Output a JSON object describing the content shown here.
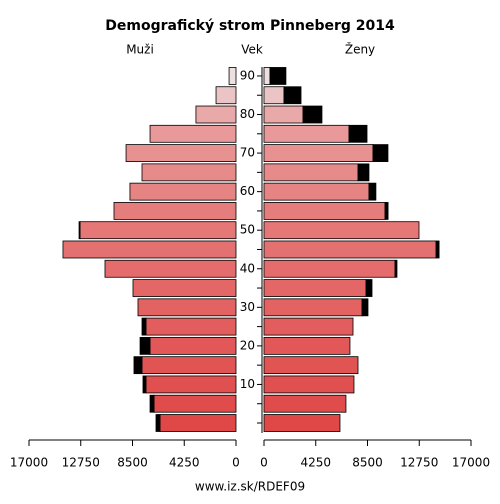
{
  "chart_data": {
    "type": "pyramid",
    "title": "Demografický strom Pinneberg 2014",
    "left_label": "Muži",
    "center_label": "Vek",
    "right_label": "Ženy",
    "footer": "www.iz.sk/RDEF09",
    "categories": [
      null,
      null,
      "10",
      null,
      "20",
      null,
      "30",
      null,
      "40",
      null,
      "50",
      null,
      "60",
      null,
      "70",
      null,
      "80",
      null,
      "90"
    ],
    "colors": [
      "#e04848",
      "#e04c4c",
      "#e15050",
      "#e15454",
      "#e25858",
      "#e25d5d",
      "#e36262",
      "#e36767",
      "#e46c6c",
      "#e47171",
      "#e57777",
      "#e67d7d",
      "#e68383",
      "#e78a8a",
      "#e89191",
      "#e99999",
      "#eaa9a9",
      "#ebc5c5",
      "#ece0e0"
    ],
    "series": [
      {
        "side": "left",
        "values": [
          6240,
          6730,
          7390,
          7720,
          7060,
          7390,
          8050,
          8460,
          10760,
          14210,
          12810,
          10020,
          8710,
          7720,
          9030,
          7060,
          3290,
          1640,
          570
        ]
      },
      {
        "side": "left",
        "color": "#000000",
        "values": [
          330,
          330,
          250,
          660,
          820,
          330,
          0,
          0,
          0,
          0,
          80,
          0,
          0,
          0,
          0,
          0,
          0,
          0,
          0
        ]
      },
      {
        "side": "right",
        "values": [
          6240,
          6730,
          7390,
          7720,
          7060,
          7310,
          8050,
          8380,
          10760,
          14130,
          12730,
          9940,
          8620,
          7720,
          8950,
          6980,
          3200,
          1640,
          490
        ]
      },
      {
        "side": "right",
        "color": "#000000",
        "values": [
          0,
          0,
          0,
          0,
          0,
          0,
          490,
          490,
          160,
          250,
          0,
          250,
          570,
          900,
          1230,
          1480,
          1560,
          1400,
          1310
        ]
      }
    ],
    "xlim": [
      0,
      17000
    ],
    "xticks": [
      0,
      4250,
      8500,
      12750,
      17000
    ]
  }
}
